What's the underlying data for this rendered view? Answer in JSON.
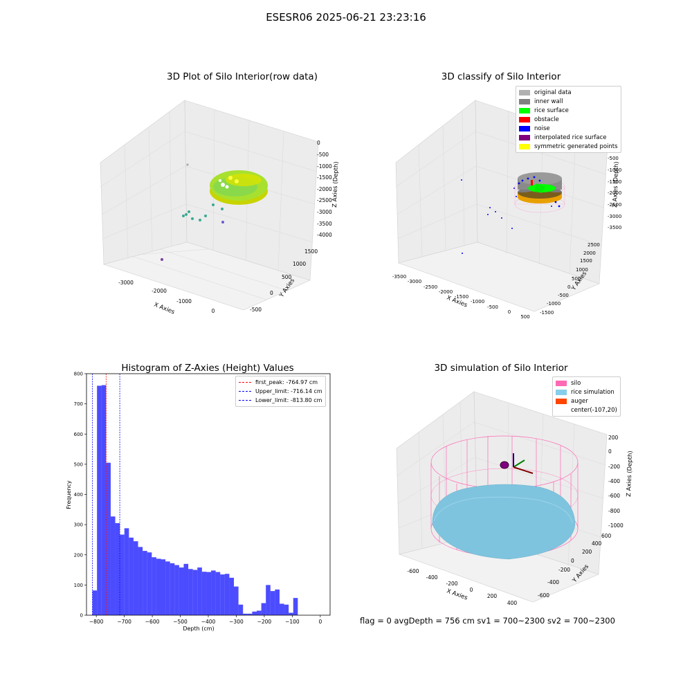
{
  "suptitle": "ESESR06 2025-06-21 23:23:16",
  "panels": {
    "raw": {
      "title": "3D Plot of Silo Interior(row data)",
      "xlabel": "X Axies",
      "ylabel": "Y Axies",
      "zlabel": "Z Axies (Depth)",
      "xticks": [
        "-3000",
        "-2000",
        "-1000",
        "0"
      ],
      "yticks": [
        "-500",
        "0",
        "500",
        "1000",
        "1500"
      ],
      "zticks": [
        "0",
        "-500",
        "-1000",
        "-1500",
        "-2000",
        "-2500",
        "-3000",
        "-3500",
        "-4000"
      ]
    },
    "classify": {
      "title": "3D classify of Silo Interior",
      "xlabel": "X Axies",
      "ylabel": "Y Axies",
      "zlabel": "Z Axies (Depth)",
      "xticks": [
        "-3500",
        "-3000",
        "-2500",
        "-2000",
        "-1500",
        "-1000",
        "-500",
        "0",
        "500"
      ],
      "yticks": [
        "-1500",
        "-1000",
        "-500",
        "0",
        "500",
        "1000",
        "1500",
        "2000",
        "2500"
      ],
      "zticks": [
        "0",
        "-500",
        "-1000",
        "-1500",
        "-2000",
        "-2500",
        "-3000",
        "-3500"
      ],
      "legend": [
        {
          "label": "original data",
          "color": "#b0b0b0"
        },
        {
          "label": "inner wall",
          "color": "#808080"
        },
        {
          "label": "rice surface",
          "color": "#00ff00"
        },
        {
          "label": "obstacle",
          "color": "#ff0000"
        },
        {
          "label": "noise",
          "color": "#0000ff"
        },
        {
          "label": "interpolated rice surface",
          "color": "#800080"
        },
        {
          "label": "symmetric generated points",
          "color": "#ffff00"
        }
      ]
    },
    "simulation": {
      "title": "3D simulation of Silo Interior",
      "xlabel": "X Axies",
      "ylabel": "Y Axies",
      "zlabel": "Z Axies (Depth)",
      "xticks": [
        "-600",
        "-400",
        "-200",
        "0",
        "200",
        "400"
      ],
      "yticks": [
        "-600",
        "-400",
        "-200",
        "0",
        "200",
        "400",
        "600"
      ],
      "zticks": [
        "200",
        "0",
        "-200",
        "-400",
        "-600",
        "-800",
        "-1000"
      ],
      "legend": [
        {
          "label": "silo",
          "color": "#ff69b4"
        },
        {
          "label": "rice simulation",
          "color": "#87ceeb"
        },
        {
          "label": "auger",
          "color": "#ff4500"
        },
        {
          "label": "center(-107,20)",
          "color": ""
        }
      ]
    }
  },
  "chart_data": {
    "type": "bar",
    "title": "Histogram of Z-Axies (Height) Values",
    "xlabel": "Depth (cm)",
    "ylabel": "Frequency",
    "xlim": [
      -835,
      35
    ],
    "ylim": [
      0,
      800
    ],
    "xticks": [
      -800,
      -700,
      -600,
      -500,
      -400,
      -300,
      -200,
      -100,
      0
    ],
    "yticks": [
      0,
      100,
      200,
      300,
      400,
      500,
      600,
      700,
      800
    ],
    "bar_color": "#0000ff",
    "bin_width": 16.3,
    "bins_start": [
      -813.8,
      -797.5,
      -781.2,
      -764.9,
      -748.6,
      -732.3,
      -716.0,
      -699.7,
      -683.4,
      -667.1,
      -650.8,
      -634.5,
      -618.2,
      -601.9,
      -585.6,
      -569.3,
      -553.0,
      -536.7,
      -520.4,
      -504.1,
      -487.8,
      -471.5,
      -455.2,
      -438.9,
      -422.6,
      -406.3,
      -390.0,
      -373.7,
      -357.4,
      -341.1,
      -324.8,
      -308.5,
      -292.2,
      -275.9,
      -259.6,
      -243.3,
      -227.0,
      -210.7,
      -194.4,
      -178.1,
      -161.8,
      -145.5,
      -129.2,
      -112.9,
      -96.6,
      -80.3,
      -64.0,
      -47.7,
      -31.4,
      -15.1
    ],
    "values": [
      82,
      760,
      762,
      505,
      327,
      305,
      267,
      288,
      257,
      245,
      226,
      213,
      208,
      192,
      187,
      185,
      178,
      172,
      166,
      158,
      170,
      153,
      150,
      158,
      144,
      143,
      148,
      143,
      135,
      137,
      124,
      95,
      35,
      5,
      5,
      12,
      15,
      40,
      100,
      80,
      85,
      38,
      35,
      8,
      57,
      0,
      0,
      0,
      0,
      0
    ],
    "vlines": [
      {
        "label": "first_peak: -764.97 cm",
        "x": -764.97,
        "color": "#ff0000"
      },
      {
        "label": "Upper_limit: -716.14 cm",
        "x": -716.14,
        "color": "#0000ff"
      },
      {
        "label": "Lower_limit: -813.80 cm",
        "x": -813.8,
        "color": "#0000ff"
      }
    ],
    "legend_position": "upper right"
  },
  "footer": "flag = 0     avgDepth = 756 cm  sv1 = 700~2300  sv2 = 700~2300"
}
